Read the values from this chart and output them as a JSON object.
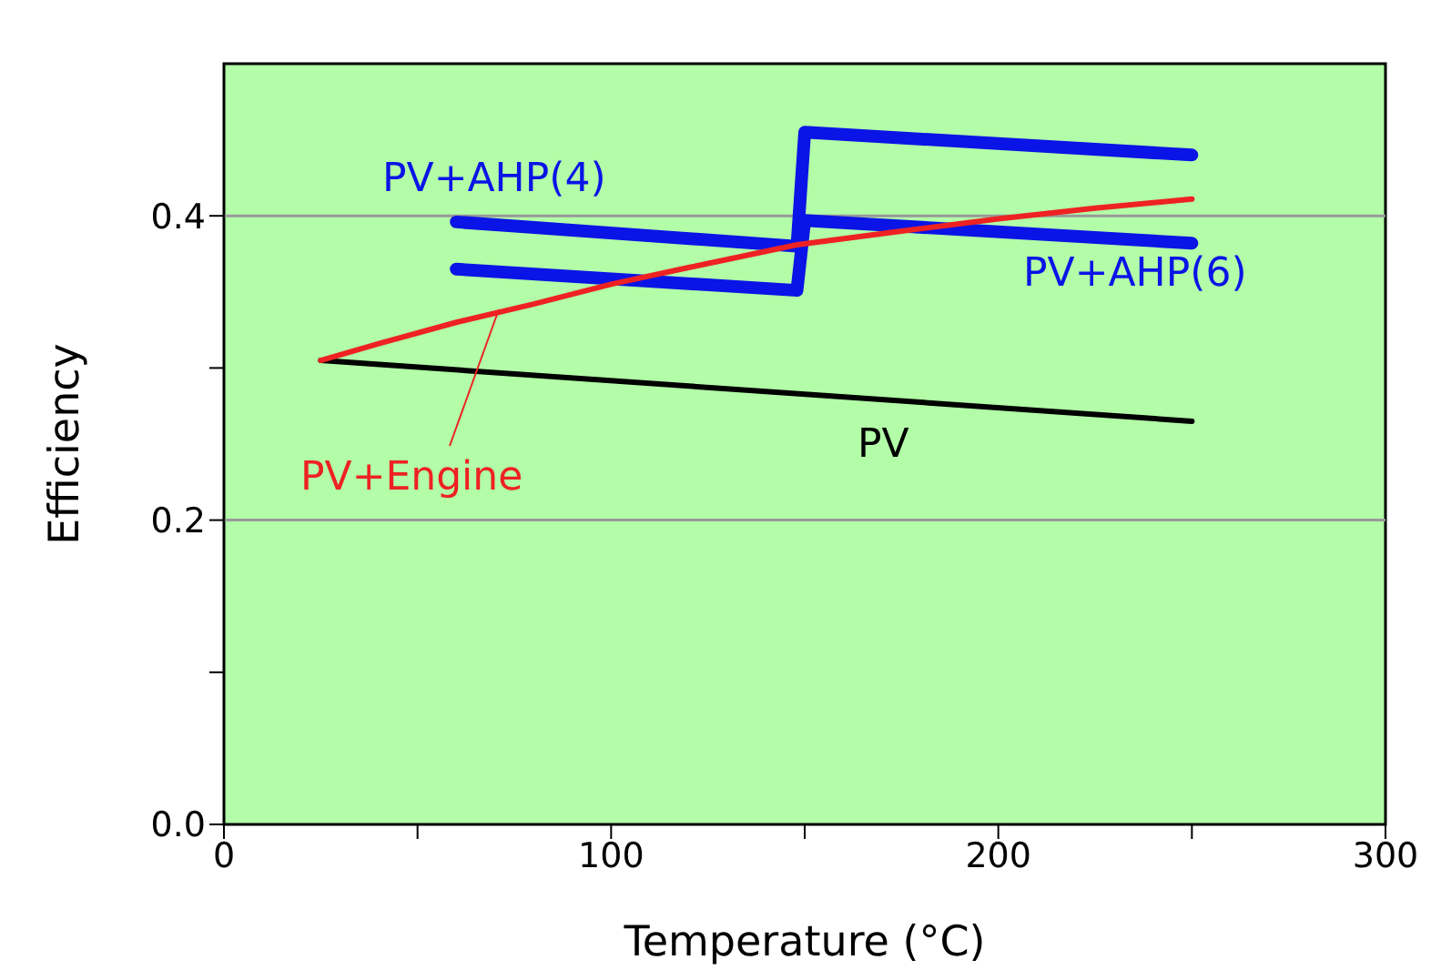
{
  "chart_data": {
    "type": "line",
    "xlabel": "Temperature (°C)",
    "ylabel": "Efficiency",
    "xlim": [
      0,
      300
    ],
    "xticks": [
      0,
      {
        "value": 50,
        "label": null
      },
      100,
      {
        "value": 150,
        "label": null
      },
      200,
      {
        "value": 250,
        "label": null
      },
      300
    ],
    "ylim": [
      0,
      0.5
    ],
    "yticks": [
      {
        "value": 0,
        "label": "0.0"
      },
      {
        "value": 0.1,
        "label": null
      },
      0.2,
      {
        "value": 0.3,
        "label": null
      },
      0.4
    ],
    "grid": "y",
    "marker": "none",
    "line_style": "solid",
    "series": [
      {
        "name": "PV",
        "color": "#000000",
        "x": [
          25,
          250
        ],
        "values": [
          0.305,
          0.265
        ]
      },
      {
        "name": "PV+Engine",
        "color": "#ee2222",
        "x": [
          25,
          40,
          60,
          80,
          100,
          120,
          148,
          175,
          200,
          225,
          250
        ],
        "values": [
          0.305,
          0.316,
          0.33,
          0.342,
          0.355,
          0.366,
          0.381,
          0.39,
          0.398,
          0.405,
          0.411
        ]
      },
      {
        "name": "PV+AHP(4)",
        "color": "#0a14e6",
        "x": [
          60,
          148,
          150,
          250
        ],
        "values": [
          0.396,
          0.38,
          0.455,
          0.44
        ]
      },
      {
        "name": "PV+AHP(6)",
        "color": "#0a14e6",
        "x": [
          60,
          148,
          150,
          250
        ],
        "values": [
          0.365,
          0.351,
          0.397,
          0.382
        ]
      }
    ]
  }
}
